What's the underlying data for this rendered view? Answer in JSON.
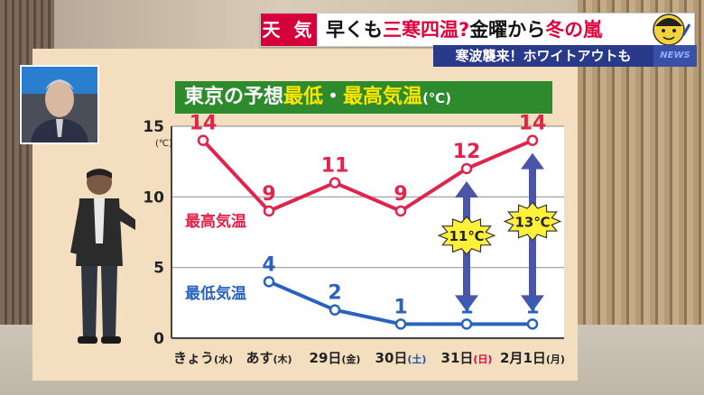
{
  "banner": {
    "tag": "天 気",
    "headline_parts": [
      {
        "text": "早くも",
        "color": "#111111"
      },
      {
        "text": "三寒四温?",
        "color": "#e0003c"
      },
      {
        "text": "金曜から",
        "color": "#111111"
      },
      {
        "text": "冬の嵐",
        "color": "#e0003c"
      }
    ],
    "subline": "寒波襲来！ホワイトアウトも",
    "network": "NEWS"
  },
  "board": {
    "title_prefix": "東京の予想",
    "title_low": "最低",
    "title_sep": "・",
    "title_high": "最高気温",
    "title_unit": "(℃)"
  },
  "chart_data": {
    "type": "line",
    "categories": [
      {
        "main": "きょう",
        "day": "水",
        "day_color": "#222222"
      },
      {
        "main": "あす",
        "day": "木",
        "day_color": "#222222"
      },
      {
        "main": "29日",
        "day": "金",
        "day_color": "#222222"
      },
      {
        "main": "30日",
        "day": "土",
        "day_color": "#1b4fb5"
      },
      {
        "main": "31日",
        "day": "日",
        "day_color": "#e0003c"
      },
      {
        "main": "2月1日",
        "day": "月",
        "day_color": "#222222"
      }
    ],
    "y_ticks": [
      0,
      5,
      10,
      15
    ],
    "y_unit": "(℃)",
    "ylim": [
      0,
      15
    ],
    "series": [
      {
        "name": "最高気温",
        "color": "#e0244c",
        "values": [
          14,
          9,
          11,
          9,
          12,
          14
        ]
      },
      {
        "name": "最低気温",
        "color": "#2a63bf",
        "values": [
          null,
          4,
          2,
          1,
          1,
          1
        ]
      }
    ],
    "ranges": [
      {
        "index": 4,
        "label": "11℃"
      },
      {
        "index": 5,
        "label": "13℃"
      }
    ]
  },
  "colors": {
    "accent_red": "#e0003c",
    "title_green": "#2d8a2d",
    "board": "#f3dfc0",
    "arrow": "#4a55a8",
    "burst": "#fff13a"
  }
}
